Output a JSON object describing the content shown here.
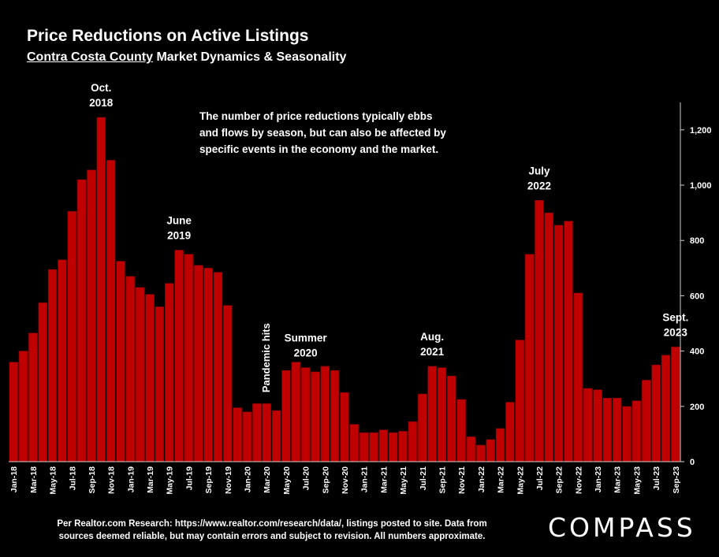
{
  "header": {
    "title": "Price Reductions on Active Listings",
    "subtitle_underlined": "Contra Costa County",
    "subtitle_rest": " Market Dynamics & Seasonality"
  },
  "footer": {
    "source": "Per Realtor.com Research:  https://www.realtor.com/research/data/, listings posted to site. Data from sources deemed reliable, but may contain errors and subject to revision. All numbers approximate.",
    "logo": "COMPASS"
  },
  "colors": {
    "bar": "#c00000",
    "bar_stroke": "#7a0000",
    "background": "#000000",
    "text": "#ffffff"
  },
  "chart_data": {
    "type": "bar",
    "ylim": [
      0,
      1300
    ],
    "yticks": [
      0,
      200,
      400,
      600,
      800,
      "1,000",
      "1,200"
    ],
    "ytick_values": [
      0,
      200,
      400,
      600,
      800,
      1000,
      1200
    ],
    "y_axis_side": "right",
    "grid": false,
    "x_tick_every": 2,
    "categories": [
      "Jan-18",
      "Feb-18",
      "Mar-18",
      "Apr-18",
      "May-18",
      "Jun-18",
      "Jul-18",
      "Aug-18",
      "Sep-18",
      "Oct-18",
      "Nov-18",
      "Dec-18",
      "Jan-19",
      "Feb-19",
      "Mar-19",
      "Apr-19",
      "May-19",
      "Jun-19",
      "Jul-19",
      "Aug-19",
      "Sep-19",
      "Oct-19",
      "Nov-19",
      "Dec-19",
      "Jan-20",
      "Feb-20",
      "Mar-20",
      "Apr-20",
      "May-20",
      "Jun-20",
      "Jul-20",
      "Aug-20",
      "Sep-20",
      "Oct-20",
      "Nov-20",
      "Dec-20",
      "Jan-21",
      "Feb-21",
      "Mar-21",
      "Apr-21",
      "May-21",
      "Jun-21",
      "Jul-21",
      "Aug-21",
      "Sep-21",
      "Oct-21",
      "Nov-21",
      "Dec-21",
      "Jan-22",
      "Feb-22",
      "Mar-22",
      "Apr-22",
      "May-22",
      "Jun-22",
      "Jul-22",
      "Aug-22",
      "Sep-22",
      "Oct-22",
      "Nov-22",
      "Dec-22",
      "Jan-23",
      "Feb-23",
      "Mar-23",
      "Apr-23",
      "May-23",
      "Jun-23",
      "Jul-23",
      "Aug-23",
      "Sep-23"
    ],
    "values": [
      360,
      400,
      465,
      575,
      695,
      730,
      905,
      1020,
      1055,
      1245,
      1090,
      725,
      670,
      630,
      605,
      560,
      645,
      765,
      750,
      710,
      700,
      685,
      565,
      195,
      180,
      210,
      210,
      185,
      330,
      360,
      340,
      325,
      345,
      330,
      250,
      135,
      105,
      105,
      115,
      105,
      110,
      145,
      245,
      345,
      340,
      310,
      225,
      90,
      60,
      80,
      120,
      215,
      440,
      750,
      945,
      900,
      855,
      870,
      610,
      265,
      260,
      230,
      230,
      200,
      220,
      295,
      350,
      385,
      415
    ],
    "annotations": [
      {
        "lines": [
          "Oct.",
          "2018"
        ],
        "at": "Oct-18"
      },
      {
        "lines": [
          "June",
          "2019"
        ],
        "at": "Jun-19"
      },
      {
        "lines": [
          "Pandemic hits"
        ],
        "at": "Mar-20",
        "rotated": true
      },
      {
        "lines": [
          "Summer",
          "2020"
        ],
        "at": "Jul-20"
      },
      {
        "lines": [
          "Aug.",
          "2021"
        ],
        "at": "Aug-21"
      },
      {
        "lines": [
          "July",
          "2022"
        ],
        "at": "Jul-22"
      },
      {
        "lines": [
          "Sept.",
          "2023"
        ],
        "at": "Sep-23"
      }
    ],
    "note_lines": [
      "The number of price reductions typically ebbs",
      "and flows by season, but can also be affected by",
      "specific events in the economy and the market."
    ]
  }
}
